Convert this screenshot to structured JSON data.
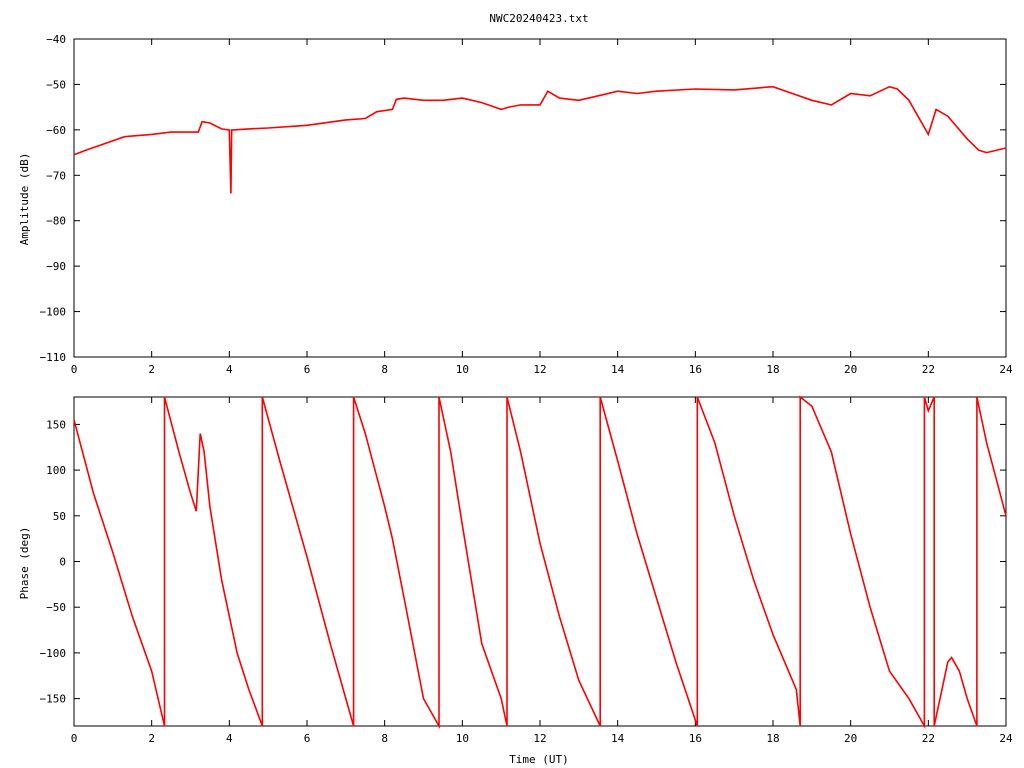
{
  "chart_data": [
    {
      "type": "line",
      "title": "NWC20240423.txt",
      "xlabel": "",
      "ylabel": "Amplitude (dB)",
      "xlim": [
        0,
        24
      ],
      "ylim": [
        -110,
        -40
      ],
      "xticks": [
        0,
        2,
        4,
        6,
        8,
        10,
        12,
        14,
        16,
        18,
        20,
        22,
        24
      ],
      "yticks": [
        -40,
        -50,
        -60,
        -70,
        -80,
        -90,
        -100,
        -110
      ],
      "ytick_labels": [
        "−40",
        "−50",
        "−60",
        "−70",
        "−80",
        "−90",
        "−100",
        "−110"
      ],
      "color": "#ff0000",
      "grid": false,
      "series": [
        {
          "x": [
            0,
            0.3,
            0.8,
            1.3,
            2.0,
            2.5,
            3.2,
            3.3,
            3.5,
            3.8,
            4.0,
            4.04,
            4.06,
            4.1,
            4.5,
            5.0,
            6.0,
            7.0,
            7.5,
            7.8,
            8.2,
            8.3,
            8.5,
            9.0,
            9.5,
            10.0,
            10.5,
            11.0,
            11.2,
            11.5,
            12.0,
            12.2,
            12.5,
            13.0,
            13.5,
            14.0,
            14.5,
            15.0,
            16.0,
            17.0,
            18.0,
            18.5,
            19.0,
            19.5,
            20.0,
            20.5,
            21.0,
            21.2,
            21.5,
            21.8,
            22.0,
            22.2,
            22.5,
            23.0,
            23.3,
            23.5,
            24.0
          ],
          "y": [
            -65.5,
            -64.5,
            -63,
            -61.5,
            -61,
            -60.5,
            -60.5,
            -58.2,
            -58.5,
            -59.8,
            -60,
            -74,
            -60,
            -60,
            -59.8,
            -59.6,
            -59,
            -57.8,
            -57.5,
            -56,
            -55.5,
            -53.3,
            -53,
            -53.5,
            -53.5,
            -53,
            -54,
            -55.5,
            -55,
            -54.5,
            -54.5,
            -51.5,
            -53,
            -53.5,
            -52.5,
            -51.5,
            -52,
            -51.5,
            -51,
            -51.2,
            -50.5,
            -52,
            -53.5,
            -54.5,
            -52,
            -52.5,
            -50.5,
            -51,
            -53.5,
            -58,
            -61,
            -55.5,
            -57,
            -62,
            -64.5,
            -65,
            -64
          ]
        }
      ]
    },
    {
      "type": "line",
      "title": "",
      "xlabel": "Time (UT)",
      "ylabel": "Phase (deg)",
      "xlim": [
        0,
        24
      ],
      "ylim": [
        -180,
        180
      ],
      "xticks": [
        0,
        2,
        4,
        6,
        8,
        10,
        12,
        14,
        16,
        18,
        20,
        22,
        24
      ],
      "yticks": [
        150,
        100,
        50,
        0,
        -50,
        -100,
        -150
      ],
      "ytick_labels": [
        "150",
        "100",
        "50",
        "0",
        "−50",
        "−100",
        "−150"
      ],
      "color": "#ff0000",
      "grid": false,
      "series": [
        {
          "x": [
            0,
            0.5,
            1.0,
            1.5,
            2.0,
            2.33,
            2.33,
            2.7,
            3.0,
            3.15,
            3.25,
            3.35,
            3.5,
            3.8,
            4.2,
            4.5,
            4.85,
            4.85,
            5.3,
            6.0,
            6.6,
            7.2,
            7.2,
            7.5,
            8.0,
            8.2,
            8.5,
            9.0,
            9.4,
            9.4,
            9.7,
            10.0,
            10.5,
            11.0,
            11.15,
            11.15,
            11.5,
            12.0,
            12.5,
            13.0,
            13.55,
            13.55,
            14.0,
            14.5,
            15.0,
            15.5,
            16.05,
            16.05,
            16.5,
            17.0,
            17.5,
            18.0,
            18.6,
            18.7,
            18.7,
            19.0,
            19.5,
            20.0,
            20.5,
            21.0,
            21.5,
            21.9,
            21.9,
            22.0,
            22.15,
            22.15,
            22.5,
            22.6,
            22.8,
            23.0,
            23.25,
            23.25,
            23.5,
            24.0
          ],
          "y": [
            155,
            75,
            10,
            -60,
            -120,
            -180,
            180,
            120,
            75,
            55,
            140,
            120,
            60,
            -20,
            -100,
            -140,
            -180,
            180,
            110,
            5,
            -90,
            -180,
            180,
            140,
            60,
            25,
            -40,
            -150,
            -180,
            180,
            120,
            40,
            -90,
            -150,
            -180,
            180,
            120,
            20,
            -60,
            -130,
            -180,
            180,
            110,
            30,
            -40,
            -110,
            -180,
            180,
            130,
            50,
            -20,
            -80,
            -140,
            -180,
            180,
            170,
            120,
            30,
            -50,
            -120,
            -150,
            -180,
            180,
            165,
            180,
            -180,
            -110,
            -105,
            -120,
            -150,
            -180,
            180,
            130,
            50
          ]
        }
      ]
    }
  ]
}
